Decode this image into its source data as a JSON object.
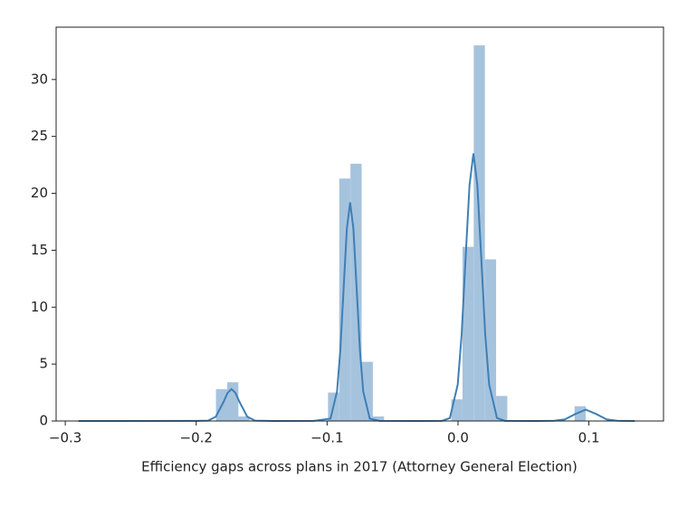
{
  "chart_data": {
    "type": "histogram",
    "xlabel": "Efficiency gaps across plans in 2017 (Attorney General Election)",
    "bins": [
      -0.2876,
      -0.27904,
      -0.27048,
      -0.26192,
      -0.25336,
      -0.2448,
      -0.23624,
      -0.22768,
      -0.21912,
      -0.21056,
      -0.202,
      -0.19344,
      -0.18488,
      -0.17632,
      -0.16776,
      -0.1592,
      -0.15064,
      -0.14208,
      -0.13352,
      -0.12496,
      -0.1164,
      -0.10784,
      -0.09928,
      -0.09072,
      -0.08216,
      -0.0736,
      -0.06504,
      -0.05648,
      -0.04792,
      -0.03936,
      -0.0308,
      -0.02224,
      -0.01368,
      -0.00512,
      0.00344,
      0.012,
      0.02056,
      0.02912,
      0.03768,
      0.04624,
      0.0548,
      0.06336,
      0.07192,
      0.08048,
      0.08904,
      0.0976,
      0.10616,
      0.11472,
      0.12328,
      0.13184,
      0.1404
    ],
    "counts": [
      0,
      0,
      0,
      0,
      0,
      0,
      0,
      0,
      0,
      0,
      0,
      0,
      2.8,
      3.4,
      0.4,
      0,
      0,
      0,
      0,
      0,
      0,
      0,
      2.5,
      21.3,
      22.6,
      5.2,
      0.4,
      0,
      0,
      0,
      0,
      0,
      0,
      1.9,
      15.3,
      33,
      14.2,
      2.2,
      0,
      0,
      0,
      0,
      0,
      0,
      1.3,
      0,
      0,
      0,
      0,
      0
    ],
    "color": "#a6c3de",
    "kde": {
      "color": "#3f7fb5",
      "x": [
        -0.29,
        -0.2,
        -0.191,
        -0.185,
        -0.179,
        -0.176,
        -0.173,
        -0.17,
        -0.167,
        -0.161,
        -0.155,
        -0.14,
        -0.11,
        -0.0974,
        -0.0924,
        -0.0899,
        -0.0874,
        -0.0849,
        -0.0824,
        -0.0799,
        -0.0774,
        -0.0749,
        -0.0724,
        -0.0674,
        -0.06,
        -0.03,
        -0.0122,
        -0.0062,
        -0.0002,
        0.0028,
        0.0058,
        0.0088,
        0.0118,
        0.0148,
        0.0178,
        0.0208,
        0.0238,
        0.0298,
        0.0358,
        0.06,
        0.0736,
        0.0816,
        0.0896,
        0.0976,
        0.1056,
        0.1136,
        0.1216,
        0.135
      ],
      "values": [
        0,
        0.01,
        0.03,
        0.38,
        1.7,
        2.47,
        2.8,
        2.47,
        1.7,
        0.38,
        0.03,
        0,
        0.01,
        0.21,
        2.6,
        6.2,
        11.6,
        16.9,
        19.2,
        16.9,
        11.6,
        6.2,
        2.6,
        0.21,
        0.01,
        0,
        0.01,
        0.26,
        3.2,
        7.6,
        14.3,
        20.7,
        23.5,
        20.7,
        14.3,
        7.6,
        3.2,
        0.26,
        0.01,
        0,
        0.02,
        0.14,
        0.61,
        1.0,
        0.61,
        0.14,
        0.02,
        0
      ]
    },
    "xlim": [
      -0.307,
      0.157
    ],
    "ylim": [
      0,
      34.6
    ],
    "xticks": [
      {
        "value": -0.3,
        "label": "−0.3"
      },
      {
        "value": -0.2,
        "label": "−0.2"
      },
      {
        "value": -0.1,
        "label": "−0.1"
      },
      {
        "value": 0.0,
        "label": "0.0"
      },
      {
        "value": 0.1,
        "label": "0.1"
      }
    ],
    "yticks": [
      0,
      5,
      10,
      15,
      20,
      25,
      30
    ]
  }
}
